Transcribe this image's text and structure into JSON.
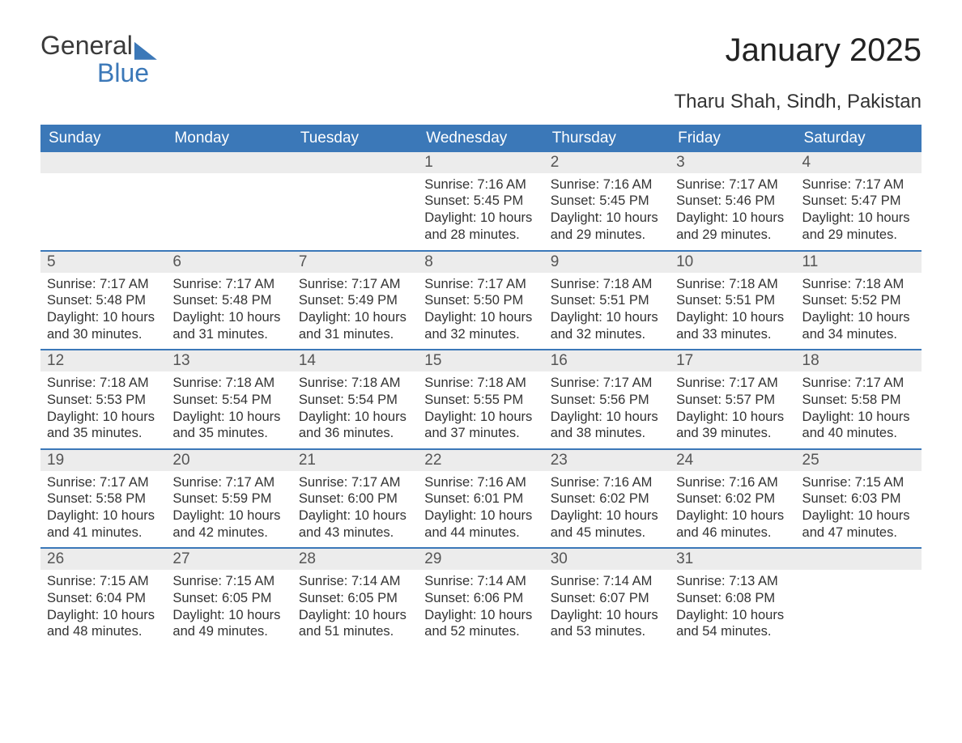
{
  "logo": {
    "word1": "General",
    "word2": "Blue"
  },
  "title": "January 2025",
  "location": "Tharu Shah, Sindh, Pakistan",
  "colors": {
    "header_bg": "#3b78b8",
    "header_text": "#ffffff",
    "daynum_bg": "#ececec",
    "rule": "#3b78b8",
    "body_text": "#333333",
    "page_bg": "#ffffff"
  },
  "fonts": {
    "title_pt": 40,
    "location_pt": 24,
    "dayhead_pt": 19,
    "body_pt": 16.5
  },
  "dayNames": [
    "Sunday",
    "Monday",
    "Tuesday",
    "Wednesday",
    "Thursday",
    "Friday",
    "Saturday"
  ],
  "layout": {
    "leadingBlanks": 3,
    "daysInMonth": 31
  },
  "days": {
    "1": {
      "sunrise": "7:16 AM",
      "sunset": "5:45 PM",
      "daylight": "10 hours and 28 minutes."
    },
    "2": {
      "sunrise": "7:16 AM",
      "sunset": "5:45 PM",
      "daylight": "10 hours and 29 minutes."
    },
    "3": {
      "sunrise": "7:17 AM",
      "sunset": "5:46 PM",
      "daylight": "10 hours and 29 minutes."
    },
    "4": {
      "sunrise": "7:17 AM",
      "sunset": "5:47 PM",
      "daylight": "10 hours and 29 minutes."
    },
    "5": {
      "sunrise": "7:17 AM",
      "sunset": "5:48 PM",
      "daylight": "10 hours and 30 minutes."
    },
    "6": {
      "sunrise": "7:17 AM",
      "sunset": "5:48 PM",
      "daylight": "10 hours and 31 minutes."
    },
    "7": {
      "sunrise": "7:17 AM",
      "sunset": "5:49 PM",
      "daylight": "10 hours and 31 minutes."
    },
    "8": {
      "sunrise": "7:17 AM",
      "sunset": "5:50 PM",
      "daylight": "10 hours and 32 minutes."
    },
    "9": {
      "sunrise": "7:18 AM",
      "sunset": "5:51 PM",
      "daylight": "10 hours and 32 minutes."
    },
    "10": {
      "sunrise": "7:18 AM",
      "sunset": "5:51 PM",
      "daylight": "10 hours and 33 minutes."
    },
    "11": {
      "sunrise": "7:18 AM",
      "sunset": "5:52 PM",
      "daylight": "10 hours and 34 minutes."
    },
    "12": {
      "sunrise": "7:18 AM",
      "sunset": "5:53 PM",
      "daylight": "10 hours and 35 minutes."
    },
    "13": {
      "sunrise": "7:18 AM",
      "sunset": "5:54 PM",
      "daylight": "10 hours and 35 minutes."
    },
    "14": {
      "sunrise": "7:18 AM",
      "sunset": "5:54 PM",
      "daylight": "10 hours and 36 minutes."
    },
    "15": {
      "sunrise": "7:18 AM",
      "sunset": "5:55 PM",
      "daylight": "10 hours and 37 minutes."
    },
    "16": {
      "sunrise": "7:17 AM",
      "sunset": "5:56 PM",
      "daylight": "10 hours and 38 minutes."
    },
    "17": {
      "sunrise": "7:17 AM",
      "sunset": "5:57 PM",
      "daylight": "10 hours and 39 minutes."
    },
    "18": {
      "sunrise": "7:17 AM",
      "sunset": "5:58 PM",
      "daylight": "10 hours and 40 minutes."
    },
    "19": {
      "sunrise": "7:17 AM",
      "sunset": "5:58 PM",
      "daylight": "10 hours and 41 minutes."
    },
    "20": {
      "sunrise": "7:17 AM",
      "sunset": "5:59 PM",
      "daylight": "10 hours and 42 minutes."
    },
    "21": {
      "sunrise": "7:17 AM",
      "sunset": "6:00 PM",
      "daylight": "10 hours and 43 minutes."
    },
    "22": {
      "sunrise": "7:16 AM",
      "sunset": "6:01 PM",
      "daylight": "10 hours and 44 minutes."
    },
    "23": {
      "sunrise": "7:16 AM",
      "sunset": "6:02 PM",
      "daylight": "10 hours and 45 minutes."
    },
    "24": {
      "sunrise": "7:16 AM",
      "sunset": "6:02 PM",
      "daylight": "10 hours and 46 minutes."
    },
    "25": {
      "sunrise": "7:15 AM",
      "sunset": "6:03 PM",
      "daylight": "10 hours and 47 minutes."
    },
    "26": {
      "sunrise": "7:15 AM",
      "sunset": "6:04 PM",
      "daylight": "10 hours and 48 minutes."
    },
    "27": {
      "sunrise": "7:15 AM",
      "sunset": "6:05 PM",
      "daylight": "10 hours and 49 minutes."
    },
    "28": {
      "sunrise": "7:14 AM",
      "sunset": "6:05 PM",
      "daylight": "10 hours and 51 minutes."
    },
    "29": {
      "sunrise": "7:14 AM",
      "sunset": "6:06 PM",
      "daylight": "10 hours and 52 minutes."
    },
    "30": {
      "sunrise": "7:14 AM",
      "sunset": "6:07 PM",
      "daylight": "10 hours and 53 minutes."
    },
    "31": {
      "sunrise": "7:13 AM",
      "sunset": "6:08 PM",
      "daylight": "10 hours and 54 minutes."
    }
  },
  "labels": {
    "sunrise": "Sunrise:",
    "sunset": "Sunset:",
    "daylight": "Daylight:"
  }
}
